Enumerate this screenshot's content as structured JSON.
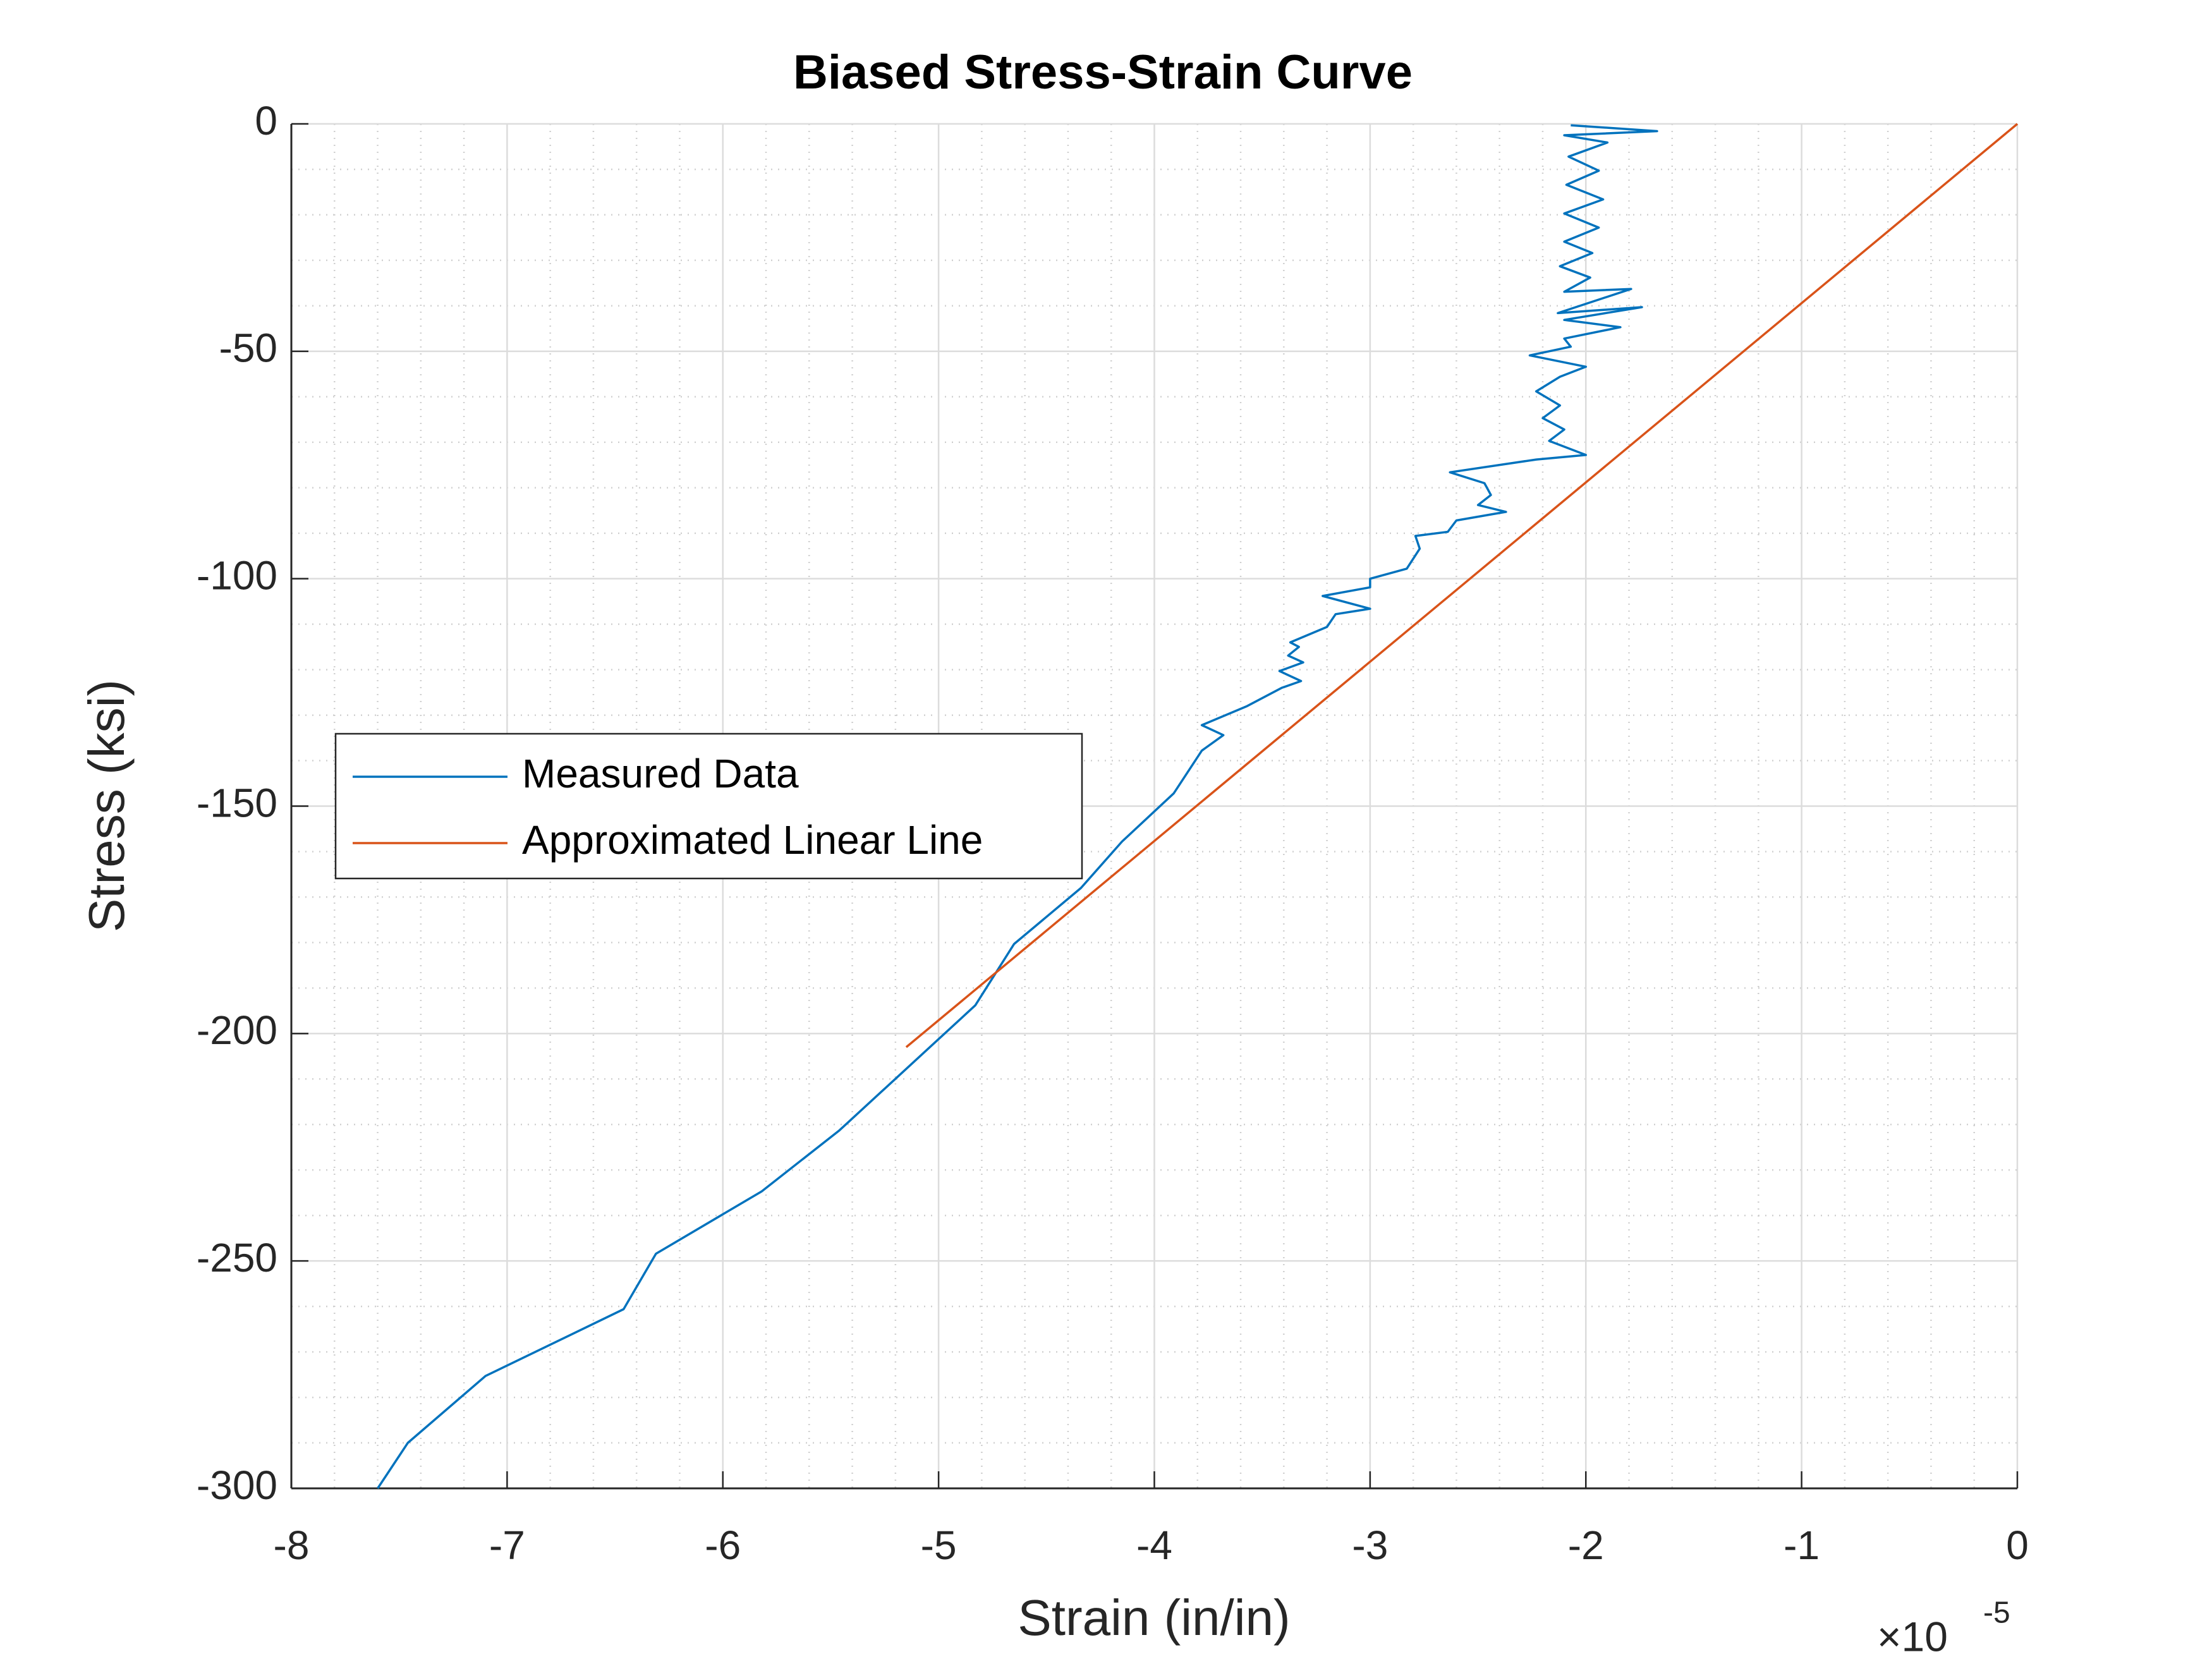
{
  "chart_data": {
    "type": "line",
    "title": "Biased Stress-Strain Curve",
    "x_label": "Strain (in/in)",
    "y_label": "Stress (ksi)",
    "x_multiplier": {
      "base": "×10",
      "exponent": "-5"
    },
    "xlim": [
      -8,
      0
    ],
    "ylim": [
      -300,
      0
    ],
    "xticks": [
      -8,
      -7,
      -6,
      -5,
      -4,
      -3,
      -2,
      -1,
      0
    ],
    "yticks": [
      -300,
      -250,
      -200,
      -150,
      -100,
      -50,
      0
    ],
    "x_minor_ticks": [
      -7.8,
      -7.6,
      -7.4,
      -7.2,
      -6.8,
      -6.6,
      -6.4,
      -6.2,
      -5.8,
      -5.6,
      -5.4,
      -5.2,
      -4.8,
      -4.6,
      -4.4,
      -4.2,
      -3.8,
      -3.6,
      -3.4,
      -3.2,
      -2.8,
      -2.6,
      -2.4,
      -2.2,
      -1.8,
      -1.6,
      -1.4,
      -1.2,
      -0.8,
      -0.6,
      -0.4,
      -0.2
    ],
    "y_minor_ticks": [
      -290,
      -280,
      -270,
      -260,
      -240,
      -230,
      -220,
      -210,
      -190,
      -180,
      -170,
      -160,
      -140,
      -130,
      -120,
      -110,
      -90,
      -80,
      -70,
      -60,
      -40,
      -30,
      -20,
      -10
    ],
    "grid": true,
    "minor_grid": true,
    "legend_position": "west",
    "series": [
      {
        "name": "Measured Data",
        "color": "#0072bd",
        "x": [
          -7.6,
          -7.46,
          -7.1,
          -6.46,
          -6.31,
          -5.82,
          -5.46,
          -4.83,
          -4.65,
          -4.34,
          -4.15,
          -3.91,
          -3.78,
          -3.68,
          -3.78,
          -3.57,
          -3.41,
          -3.32,
          -3.42,
          -3.31,
          -3.38,
          -3.33,
          -3.37,
          -3.2,
          -3.16,
          -3.0,
          -3.22,
          -3.0,
          -3.0,
          -2.83,
          -2.77,
          -2.79,
          -2.64,
          -2.6,
          -2.37,
          -2.5,
          -2.44,
          -2.47,
          -2.63,
          -2.23,
          -2.0,
          -2.17,
          -2.1,
          -2.2,
          -2.12,
          -2.23,
          -2.12,
          -2.0,
          -2.26,
          -2.07,
          -2.1,
          -1.84,
          -2.1,
          -1.74,
          -2.13,
          -1.79,
          -2.1,
          -1.98,
          -2.12,
          -1.97,
          -2.1,
          -1.94,
          -2.1,
          -1.92,
          -2.09,
          -1.94,
          -2.08,
          -1.9,
          -2.1,
          -1.67,
          -2.07
        ],
        "values": [
          -300,
          -290,
          -275.3,
          -260.6,
          -248.4,
          -234.7,
          -221.3,
          -193.8,
          -180.3,
          -168,
          -157.8,
          -147.2,
          -137.8,
          -134.4,
          -132.2,
          -128,
          -124,
          -122.5,
          -120.3,
          -118.4,
          -116.9,
          -115,
          -114,
          -110.6,
          -107.8,
          -106.6,
          -103.8,
          -101.9,
          -100,
          -97.8,
          -93.4,
          -90.6,
          -89.7,
          -87.2,
          -85.3,
          -83.8,
          -81.6,
          -79,
          -76.6,
          -73.8,
          -72.8,
          -69.7,
          -67.2,
          -64.7,
          -61.9,
          -58.8,
          -55.6,
          -53.4,
          -50.9,
          -49,
          -47.2,
          -44.7,
          -43.1,
          -40.3,
          -41.6,
          -36.3,
          -36.9,
          -33.8,
          -31.3,
          -28.4,
          -25.9,
          -22.8,
          -19.7,
          -16.6,
          -13.4,
          -10.3,
          -7.2,
          -4.1,
          -2.5,
          -1.6,
          -0.3
        ]
      },
      {
        "name": "Approximated Linear Line",
        "color": "#d95319",
        "x": [
          -5.15,
          0
        ],
        "values": [
          -203,
          0
        ]
      }
    ]
  }
}
